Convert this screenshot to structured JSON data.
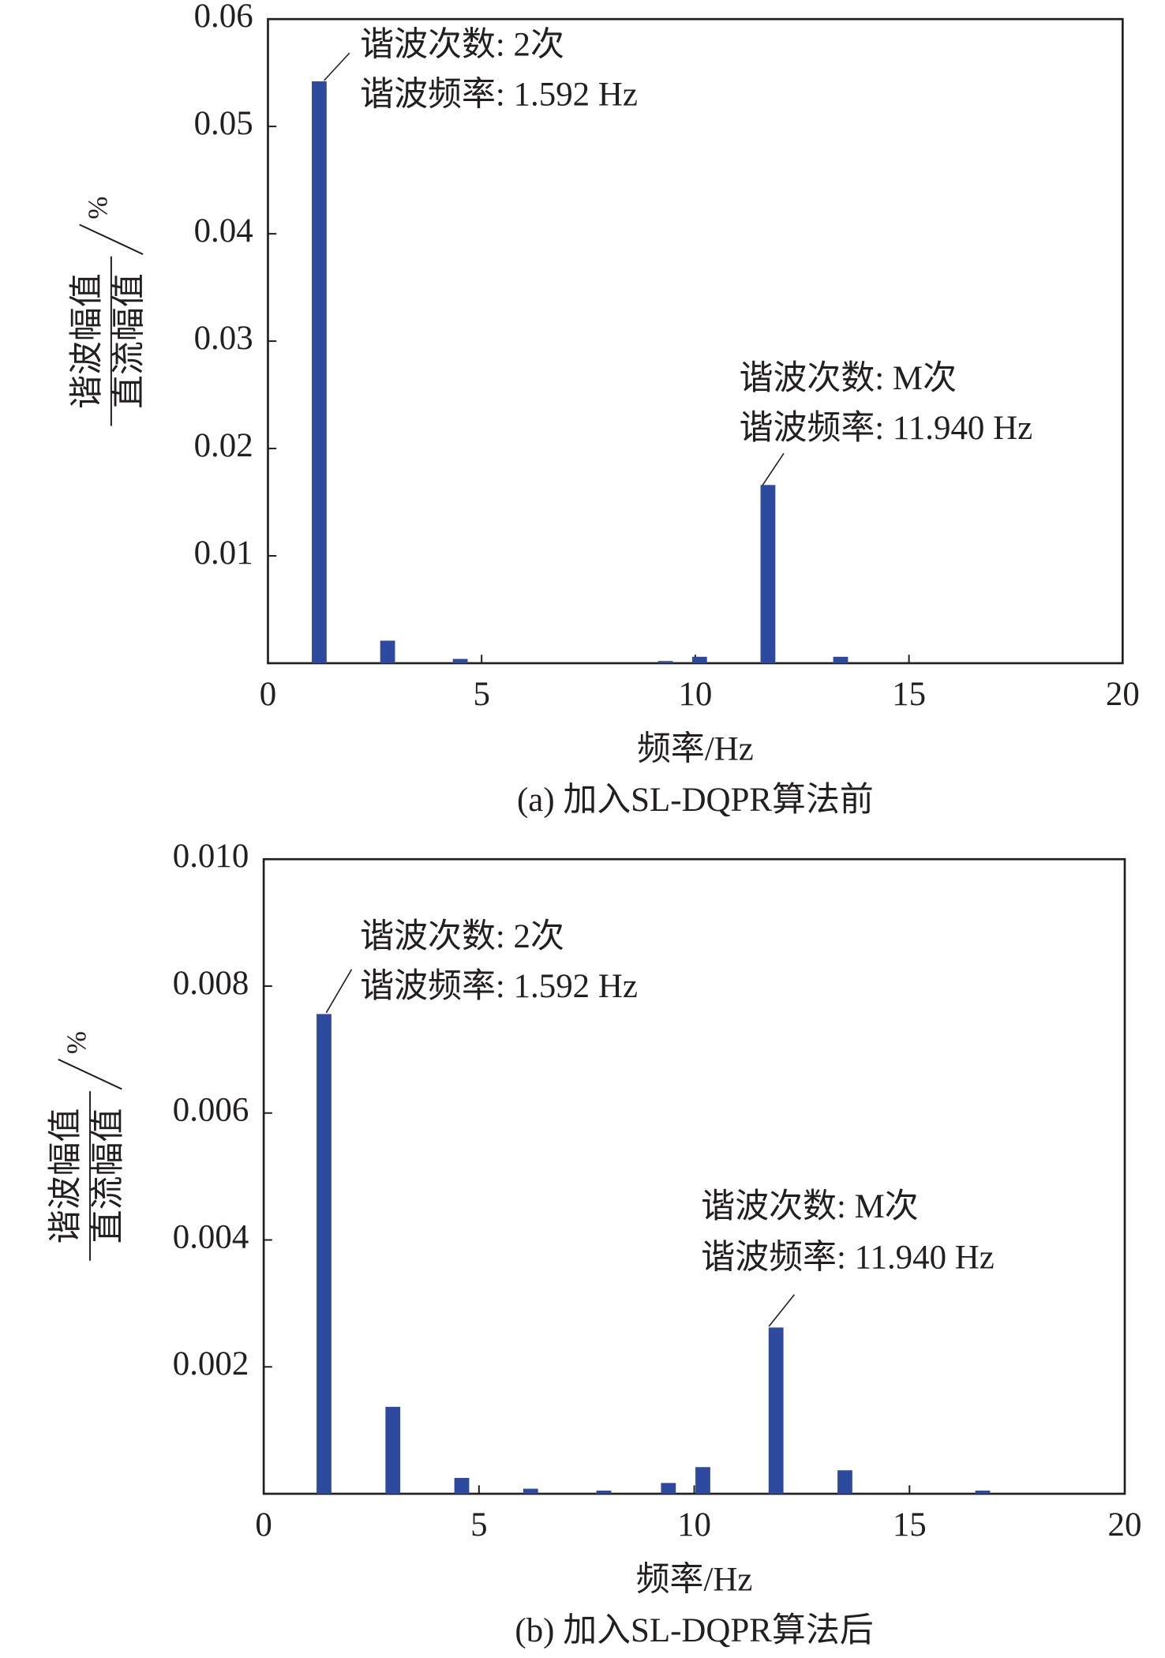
{
  "chart_data": [
    {
      "type": "bar",
      "xlabel": "频率/Hz",
      "caption": "(a) 加入SL-DQPR算法前",
      "ylabel": {
        "numerator": "谐波幅值",
        "denominator": "直流幅值",
        "unit": "%"
      },
      "x": [
        1.2,
        2.8,
        4.5,
        9.3,
        10.1,
        11.7,
        13.4
      ],
      "values": [
        0.0542,
        0.0021,
        0.0004,
        0.0002,
        0.0006,
        0.0166,
        0.0006
      ],
      "color": "#2e4a9e",
      "xlim": [
        0,
        20
      ],
      "xticks": [
        0,
        5,
        10,
        15,
        20
      ],
      "ylim": [
        0,
        0.06
      ],
      "yticks": [
        0.01,
        0.02,
        0.03,
        0.04,
        0.05,
        0.06
      ],
      "annotations": [
        [
          "谐波次数: 2次",
          "谐波频率: 1.592 Hz"
        ],
        [
          "谐波次数: M次",
          "谐波频率: 11.940 Hz"
        ]
      ]
    },
    {
      "type": "bar",
      "xlabel": "频率/Hz",
      "caption": "(b) 加入SL-DQPR算法后",
      "ylabel": {
        "numerator": "谐波幅值",
        "denominator": "直流幅值",
        "unit": "%"
      },
      "x": [
        1.4,
        3.0,
        4.6,
        6.2,
        7.9,
        9.4,
        10.2,
        11.9,
        13.5,
        16.7
      ],
      "values": [
        0.00756,
        0.00137,
        0.00025,
        8e-05,
        5e-05,
        0.00017,
        0.00042,
        0.00262,
        0.00037,
        5e-05
      ],
      "color": "#2e4a9e",
      "xlim": [
        0,
        20
      ],
      "xticks": [
        0,
        5,
        10,
        15,
        20
      ],
      "ylim": [
        0,
        0.01
      ],
      "yticks": [
        0.002,
        0.004,
        0.006,
        0.008,
        {
          "value": 0.01,
          "label": "0.010"
        }
      ],
      "annotations": [
        [
          "谐波次数: 2次",
          "谐波频率: 1.592 Hz"
        ],
        [
          "谐波次数: M次",
          "谐波频率: 11.940 Hz"
        ]
      ]
    }
  ]
}
